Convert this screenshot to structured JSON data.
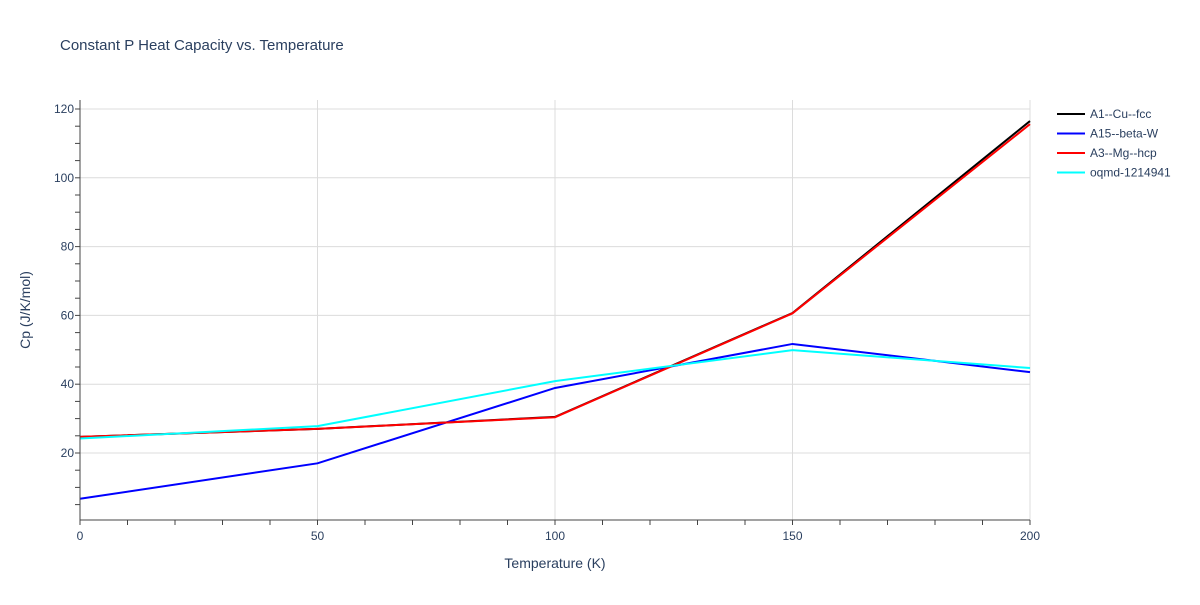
{
  "chart_data": {
    "type": "line",
    "title": "Constant P Heat Capacity vs. Temperature",
    "xlabel": "Temperature (K)",
    "ylabel": "Cp (J/K/mol)",
    "xlim": [
      0,
      200
    ],
    "ylim": [
      0.5,
      123
    ],
    "xticks": [
      0,
      50,
      100,
      150,
      200
    ],
    "yticks": [
      20,
      40,
      60,
      80,
      100,
      120
    ],
    "grid": true,
    "legend": "right",
    "x": [
      0,
      50,
      100,
      150,
      200
    ],
    "series": [
      {
        "name": "A1--Cu--fcc",
        "color": "#000000",
        "values": [
          24.7,
          27.0,
          30.5,
          60.7,
          116.5
        ]
      },
      {
        "name": "A15--beta-W",
        "color": "#0000ff",
        "values": [
          6.7,
          17.0,
          38.9,
          51.7,
          43.5
        ]
      },
      {
        "name": "A3--Mg--hcp",
        "color": "#ff0000",
        "values": [
          24.7,
          27.0,
          30.4,
          60.6,
          115.6
        ]
      },
      {
        "name": "oqmd-1214941",
        "color": "#00ffff",
        "values": [
          24.2,
          27.8,
          40.9,
          49.9,
          44.7
        ]
      }
    ]
  }
}
